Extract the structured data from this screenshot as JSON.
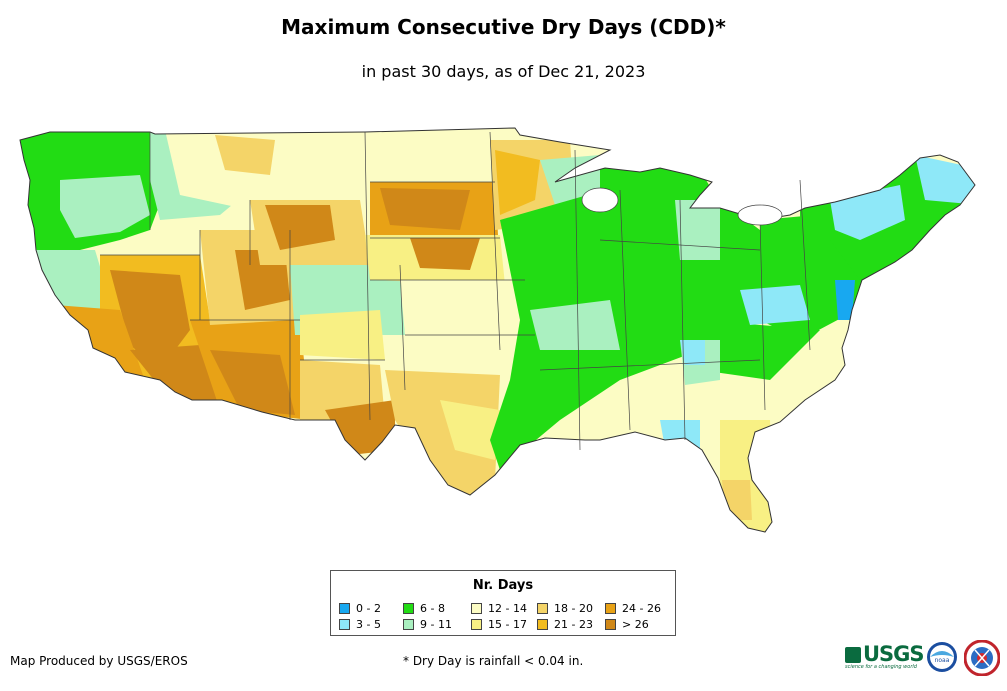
{
  "title": "Maximum Consecutive Dry Days (CDD)*",
  "subtitle": "in past 30 days, as of Dec 21, 2023",
  "legend": {
    "title": "Nr. Days",
    "items": [
      {
        "label": "0 - 2",
        "color": "#18a8f0"
      },
      {
        "label": "3 - 5",
        "color": "#8ee8f8"
      },
      {
        "label": "6 - 8",
        "color": "#22dc14"
      },
      {
        "label": "9 - 11",
        "color": "#aaf0c0"
      },
      {
        "label": "12 - 14",
        "color": "#fcfcc4"
      },
      {
        "label": "15 - 17",
        "color": "#f8f084"
      },
      {
        "label": "18 - 20",
        "color": "#f4d468"
      },
      {
        "label": "21 - 23",
        "color": "#f2bc20"
      },
      {
        "label": "24 - 26",
        "color": "#e8a216"
      },
      {
        "label": "> 26",
        "color": "#d08818"
      }
    ]
  },
  "credit": "Map Produced by USGS/EROS",
  "footnote": "* Dry Day is rainfall < 0.04 in.",
  "logos": {
    "usgs": "USGS",
    "usgs_tagline": "science for a changing world",
    "noaa": "noaa"
  }
}
